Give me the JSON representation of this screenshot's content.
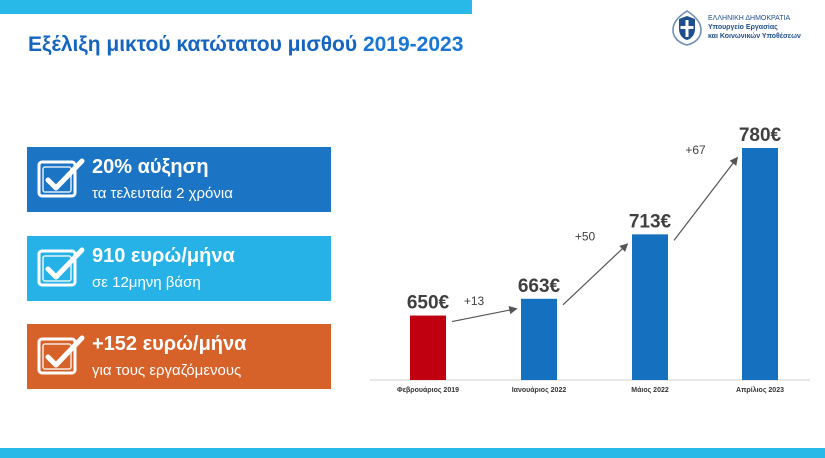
{
  "header": {
    "title_main": "Εξέλιξη μικτού κατώτατου μισθού",
    "title_years": "2019-2023"
  },
  "logo": {
    "line1": "ΕΛΛΗΝΙΚΗ ΔΗΜΟΚΡΑΤΙΑ",
    "line2": "Υπουργείο Εργασίας",
    "line3": "και Κοινωνικών Υποθέσεων"
  },
  "stats": [
    {
      "headline": "20% αύξηση",
      "subline": "τα τελευταία 2 χρόνια",
      "color": "#1b75c4"
    },
    {
      "headline": "910 ευρώ/μήνα",
      "subline": "σε 12μηνη βάση",
      "color": "#26b2e6"
    },
    {
      "headline": "+152 ευρώ/μήνα",
      "subline": "για τους εργαζόμενους",
      "color": "#d6622a"
    }
  ],
  "colors": {
    "accent_bar": "#29b9e8",
    "title_blue": "#1565c0",
    "bar_first": "#c00010",
    "bar_rest": "#1570c0"
  },
  "chart_data": {
    "type": "bar",
    "categories": [
      "Φεβρουάριος 2019",
      "Ιανουάριος 2022",
      "Μάιος 2022",
      "Απρίλιος 2023"
    ],
    "values": [
      650,
      663,
      713,
      780
    ],
    "value_labels": [
      "650€",
      "663€",
      "713€",
      "780€"
    ],
    "increments": [
      "+13",
      "+50",
      "+67"
    ],
    "bar_colors": [
      "#c00010",
      "#1570c0",
      "#1570c0",
      "#1570c0"
    ],
    "ylim": [
      600,
      780
    ],
    "grid": false,
    "legend": "none"
  }
}
